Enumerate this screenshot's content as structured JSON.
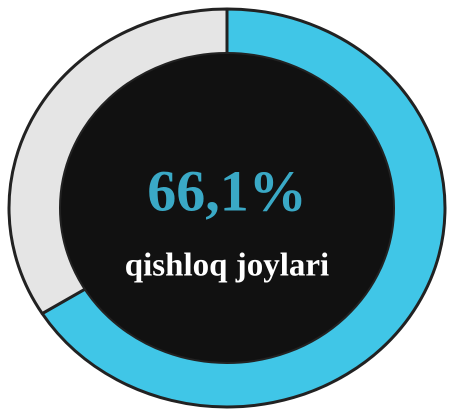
{
  "chart_data": {
    "type": "donut",
    "categories": [
      "qishloq joylari",
      null
    ],
    "values": [
      66.1,
      33.9
    ],
    "value_labels": [
      "66,1%",
      null
    ],
    "colors": [
      "#40c6e7",
      "#e5e5e5"
    ]
  }
}
